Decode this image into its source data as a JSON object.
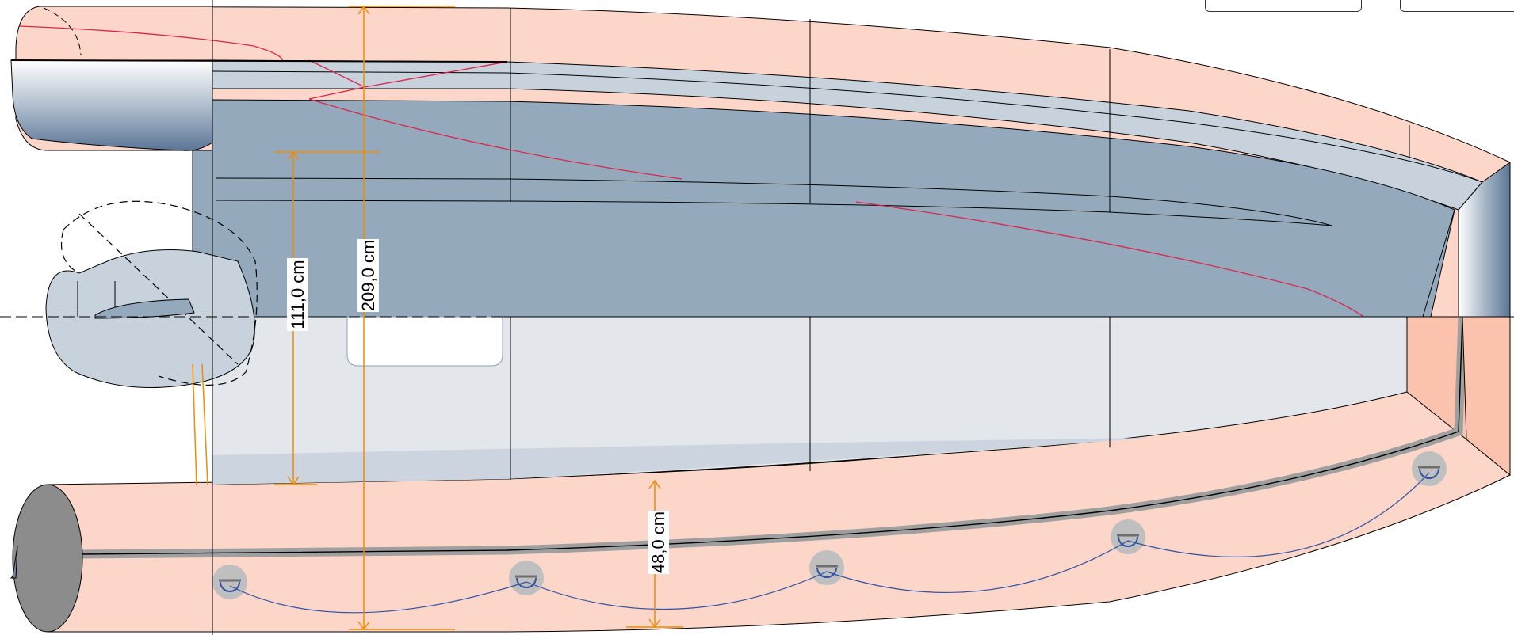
{
  "diagram": {
    "dimensions": {
      "overall_width": "209,0 cm",
      "inner_half_width": "111,0 cm",
      "tube_diameter": "48,0 cm"
    },
    "colors": {
      "tube": "#fdd6ca",
      "tube_dark": "#fbc3ae",
      "deck": "#95a9bd",
      "floor": "#e3e7ec",
      "rail": "#c8d2dd",
      "dimension": "#f28c00",
      "trim_line": "#d9264c",
      "lifeline": "#3352a2",
      "rubbing_strake": "#9f9f9f",
      "tube_cap": "#8c8c8c"
    }
  }
}
